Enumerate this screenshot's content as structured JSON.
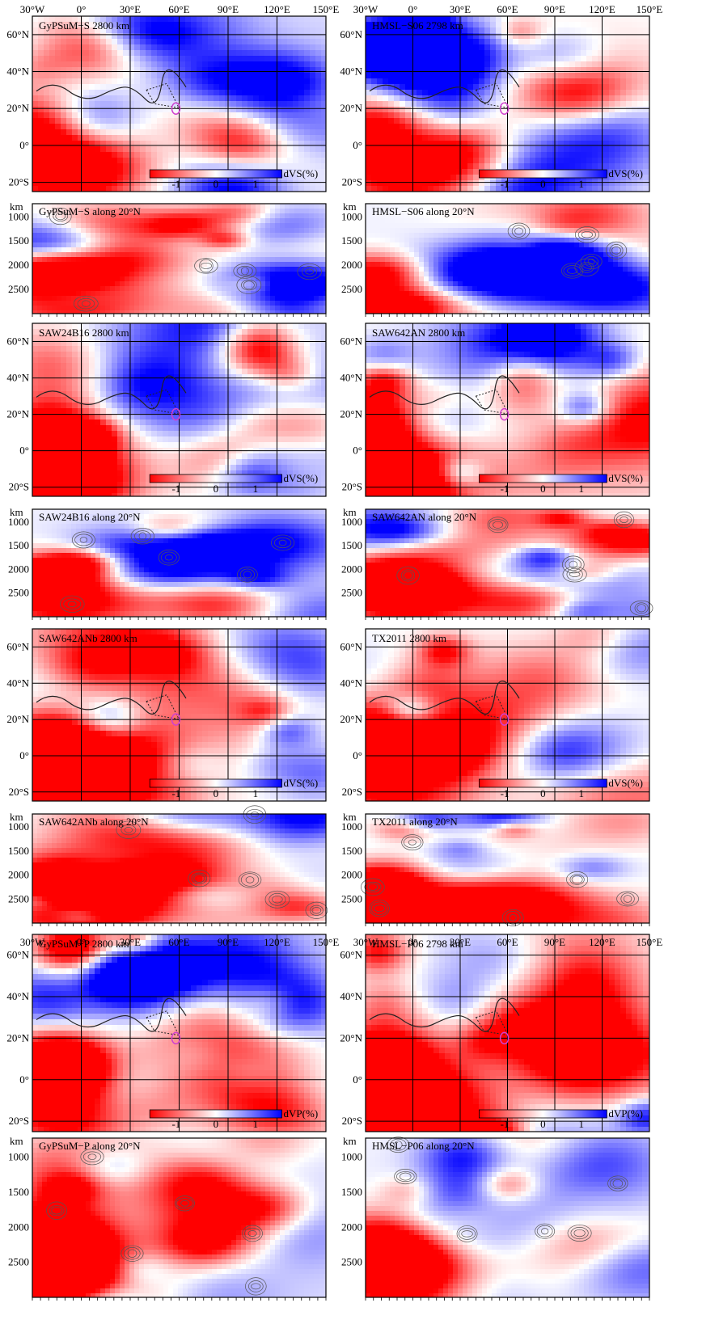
{
  "top_lon_axis": [
    "30°W",
    "0°",
    "30°E",
    "60°E",
    "90°E",
    "120°E",
    "150°E"
  ],
  "mid_lon_axis": [
    "30°W",
    "0°",
    "30°E",
    "60°E",
    "90°E",
    "120°E",
    "150°E"
  ],
  "lat_ticks": [
    "60°N",
    "40°N",
    "20°N",
    "0°",
    "20°S"
  ],
  "depth_unit": "km",
  "depth_ticks": [
    "1000",
    "1500",
    "2000",
    "2500"
  ],
  "colorbar_ticks": [
    "-1",
    "0",
    "1"
  ],
  "colorbar_label_s": "dVS(%)",
  "colorbar_label_p": "dVP(%)",
  "colors": {
    "slow": "#ff0000",
    "fast": "#0000ff",
    "neutral": "#ffffff"
  },
  "maps": [
    {
      "title": "GyPSuM−S 2800 km",
      "cb": "s",
      "bias": 0.15
    },
    {
      "title": "HMSL−S06 2798 km",
      "cb": "s",
      "bias": 0.0
    },
    {
      "title": "SAW24B16 2800 km",
      "cb": "s",
      "bias": 0.1
    },
    {
      "title": "SAW642AN 2800 km",
      "cb": "s",
      "bias": 0.0
    },
    {
      "title": "SAW642ANb 2800 km",
      "cb": "s",
      "bias": -0.05
    },
    {
      "title": "TX2011 2800 km",
      "cb": "s",
      "bias": 0.0
    },
    {
      "title": "GyPSuM−P 2800 km",
      "cb": "p",
      "bias": 0.15
    },
    {
      "title": "HMSL−P06 2798 km",
      "cb": "p",
      "bias": -0.05
    }
  ],
  "sections": [
    {
      "title": "GyPSuM−S along 20°N"
    },
    {
      "title": "HMSL−S06 along 20°N"
    },
    {
      "title": "SAW24B16 along 20°N"
    },
    {
      "title": "SAW642AN along 20°N"
    },
    {
      "title": "SAW642ANb along 20°N"
    },
    {
      "title": "TX2011 along 20°N"
    },
    {
      "title": "GyPSuM−P along 20°N"
    },
    {
      "title": "HMSL−P06 along 20°N"
    }
  ]
}
